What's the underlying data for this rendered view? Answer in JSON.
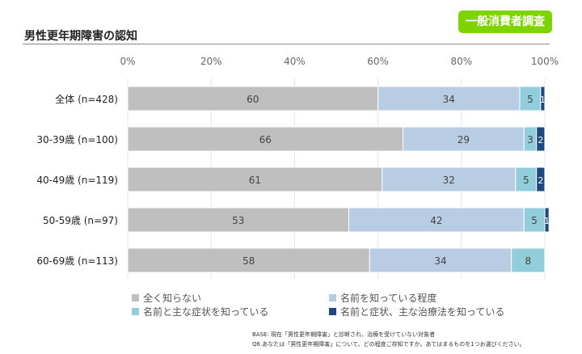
{
  "header": {
    "title": "男性更年期障害の認知",
    "badge": "一般消費者調査"
  },
  "chart_data": {
    "type": "bar",
    "orientation": "horizontal-stacked-100",
    "categories": [
      "全体 (n=428)",
      "30-39歳 (n=100)",
      "40-49歳 (n=119)",
      "50-59歳 (n=97)",
      "60-69歳 (n=113)"
    ],
    "xlim": [
      0,
      100
    ],
    "x_ticks": [
      "0%",
      "20%",
      "40%",
      "60%",
      "80%",
      "100%"
    ],
    "grid": true,
    "legend_position": "bottom",
    "series": [
      {
        "name": "全く知らない",
        "color": "#bfbfbf",
        "values": [
          60,
          66,
          61,
          53,
          58
        ]
      },
      {
        "name": "名前を知っている程度",
        "color": "#b8cce4",
        "values": [
          34,
          29,
          32,
          42,
          34
        ]
      },
      {
        "name": "名前と主な症状を知っている",
        "color": "#92cddc",
        "values": [
          5,
          3,
          5,
          5,
          8
        ]
      },
      {
        "name": "名前と症状、主な治療法を知っている",
        "color": "#1f497d",
        "values": [
          1,
          2,
          2,
          1,
          0
        ]
      }
    ]
  },
  "footer": {
    "base": "BASE: 現在「男性更年期障害」と診断され、治療を受けていない対象者",
    "question": "Q6.あなたは「男性更年期障害」について、どの程度ご存知ですか。あてはまるものを1つお選びください。"
  }
}
